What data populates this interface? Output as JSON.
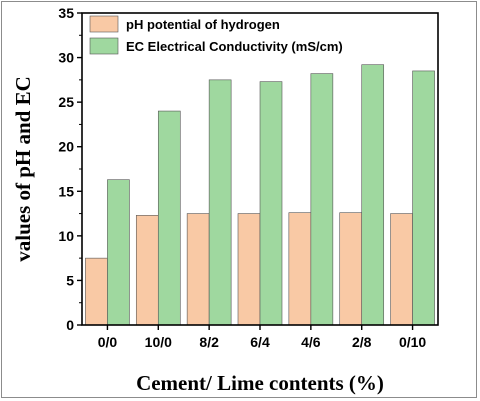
{
  "chart_data": {
    "type": "bar",
    "xlabel": "Cement/ Lime contents (%)",
    "ylabel": "values of pH and EC",
    "categories": [
      "0/0",
      "10/0",
      "8/2",
      "6/4",
      "4/6",
      "2/8",
      "0/10"
    ],
    "ylim": [
      0,
      35
    ],
    "yticks": [
      0,
      5,
      10,
      15,
      20,
      25,
      30,
      35
    ],
    "grid": false,
    "legend_position": "top-left",
    "series": [
      {
        "name": "pH potential of hydrogen",
        "color": "#f9c9a5",
        "values": [
          7.5,
          12.3,
          12.5,
          12.5,
          12.6,
          12.6,
          12.5
        ]
      },
      {
        "name": "EC  Electrical Conductivity (mS/cm)",
        "color": "#9fd89f",
        "values": [
          16.3,
          24.0,
          27.5,
          27.3,
          28.2,
          29.2,
          28.5
        ]
      }
    ]
  }
}
